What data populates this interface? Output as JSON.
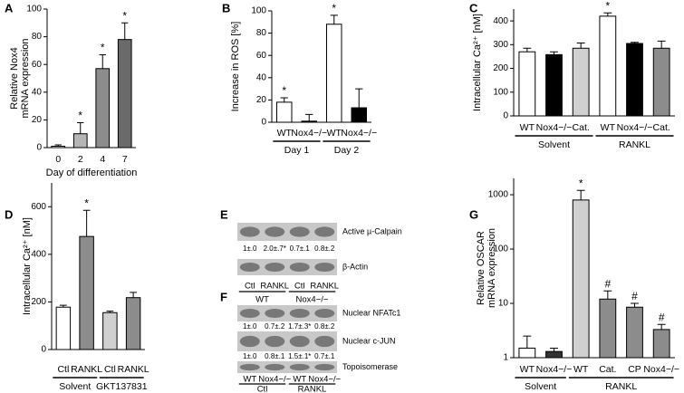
{
  "chart_data": [
    {
      "type": "bar",
      "panel": "A",
      "ylabel": [
        "Relative Nox4",
        "mRNA expression"
      ],
      "xlabel": "Day of differentiation",
      "categories": [
        "0",
        "2",
        "4",
        "7"
      ],
      "values": [
        1,
        10,
        57,
        78
      ],
      "errors": [
        1,
        8,
        10,
        12
      ],
      "colors": [
        "#ffffff",
        "#b5b5b5",
        "#8c8c8c",
        "#6a6a6a"
      ],
      "ylim": [
        0,
        100
      ],
      "yticks": [
        0,
        20,
        40,
        60,
        80,
        100
      ],
      "annotations": [
        {
          "index": 1,
          "text": "*"
        },
        {
          "index": 2,
          "text": "*"
        },
        {
          "index": 3,
          "text": "*"
        }
      ]
    },
    {
      "type": "bar",
      "panel": "B",
      "ylabel": [
        "Increase in ROS [%]"
      ],
      "categories": [
        "WT",
        "Nox4−/−",
        "WT",
        "Nox4−/−"
      ],
      "values": [
        18,
        1,
        88,
        13
      ],
      "errors": [
        4,
        6,
        8,
        17
      ],
      "colors": [
        "#ffffff",
        "#000000",
        "#ffffff",
        "#000000"
      ],
      "ylim": [
        0,
        100
      ],
      "yticks": [
        0,
        20,
        40,
        60,
        80,
        100
      ],
      "annotations": [
        {
          "index": 0,
          "text": "*"
        },
        {
          "index": 2,
          "text": "*"
        }
      ],
      "groups": [
        {
          "label": "Day 1",
          "start": 0,
          "end": 1
        },
        {
          "label": "Day 2",
          "start": 2,
          "end": 3
        }
      ]
    },
    {
      "type": "bar",
      "panel": "C",
      "ylabel": [
        "Intracellular Ca²⁺ [nM]"
      ],
      "categories": [
        "WT",
        "Nox4−/−",
        "Cat.",
        "WT",
        "Nox4−/−",
        "Cat."
      ],
      "values": [
        270,
        258,
        285,
        420,
        305,
        285
      ],
      "errors": [
        15,
        12,
        22,
        14,
        5,
        30
      ],
      "colors": [
        "#ffffff",
        "#000000",
        "#d0d0d0",
        "#ffffff",
        "#000000",
        "#8c8c8c"
      ],
      "ylim": [
        0,
        450
      ],
      "yticks": [
        0,
        100,
        200,
        300,
        400
      ],
      "annotations": [
        {
          "index": 3,
          "text": "*"
        }
      ],
      "groups": [
        {
          "label": "Solvent",
          "start": 0,
          "end": 2
        },
        {
          "label": "RANKL",
          "start": 3,
          "end": 5
        }
      ]
    },
    {
      "type": "bar",
      "panel": "D",
      "ylabel": [
        "Intracellular Ca²⁺ [nM]"
      ],
      "categories": [
        "Ctl",
        "RANKL",
        "Ctl",
        "RANKL"
      ],
      "values": [
        178,
        475,
        155,
        218
      ],
      "errors": [
        8,
        110,
        6,
        22
      ],
      "colors": [
        "#ffffff",
        "#8c8c8c",
        "#d0d0d0",
        "#8c8c8c"
      ],
      "ylim": [
        0,
        700
      ],
      "yticks": [
        0,
        200,
        400,
        600
      ],
      "annotations": [
        {
          "index": 1,
          "text": "*"
        }
      ],
      "groups": [
        {
          "label": "Solvent",
          "start": 0,
          "end": 1
        },
        {
          "label": "GKT137831",
          "start": 2,
          "end": 3
        }
      ]
    },
    {
      "type": "bar",
      "panel": "G",
      "ylabel": [
        "Relative OSCAR",
        "mRNA expression"
      ],
      "log_scale": true,
      "categories": [
        "WT",
        "Nox4−/−",
        "WT",
        "Cat.",
        "CP",
        "Nox4−/−"
      ],
      "values": [
        1.5,
        1.3,
        800,
        12,
        8.5,
        3.3
      ],
      "errors": [
        1.0,
        0.2,
        400,
        5,
        1.5,
        0.8
      ],
      "colors": [
        "#ffffff",
        "#333333",
        "#d0d0d0",
        "#8c8c8c",
        "#8c8c8c",
        "#8c8c8c"
      ],
      "ylim": [
        1,
        2000
      ],
      "yticks": [
        1,
        10,
        100,
        1000
      ],
      "annotations": [
        {
          "index": 2,
          "text": "*"
        },
        {
          "index": 3,
          "text": "#"
        },
        {
          "index": 4,
          "text": "#"
        },
        {
          "index": 5,
          "text": "#"
        }
      ],
      "groups": [
        {
          "label": "Solvent",
          "start": 0,
          "end": 1
        },
        {
          "label": "RANKL",
          "start": 2,
          "end": 5
        }
      ]
    }
  ],
  "blots": [
    {
      "panel": "E",
      "rows": [
        {
          "label": "Active µ-Calpain",
          "quant": [
            "1±.0",
            "2.0±.7*",
            "0.7±.1",
            "0.8±.2"
          ]
        },
        {
          "label": "β-Actin"
        }
      ],
      "lanes": [
        "Ctl",
        "RANKL",
        "Ctl",
        "RANKL"
      ],
      "groups": [
        {
          "label": "WT",
          "start": 0,
          "end": 1
        },
        {
          "label": "Nox4−/−",
          "start": 2,
          "end": 3
        }
      ]
    },
    {
      "panel": "F",
      "rows": [
        {
          "label": "Nuclear NFATc1",
          "quant": [
            "1±.0",
            "0.7±.2",
            "1.7±.3*",
            "0.8±.2"
          ]
        },
        {
          "label": "Nuclear c-JUN",
          "quant": [
            "1±.0",
            "0.8±.1",
            "1.5±.1*",
            "0.7±.1"
          ]
        },
        {
          "label": "Topoisomerase"
        }
      ],
      "lanes": [
        "WT",
        "Nox4−/−",
        "WT",
        "Nox4−/−"
      ],
      "groups": [
        {
          "label": "Ctl",
          "start": 0,
          "end": 1
        },
        {
          "label": "RANKL",
          "start": 2,
          "end": 3
        }
      ]
    }
  ]
}
